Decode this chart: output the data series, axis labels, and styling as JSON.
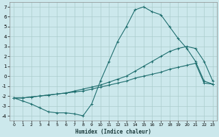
{
  "xlabel": "Humidex (Indice chaleur)",
  "bg_color": "#cce8ec",
  "grid_color": "#aacccc",
  "line_color": "#1a6b6b",
  "xlim": [
    -0.5,
    23.5
  ],
  "ylim": [
    -4.5,
    7.5
  ],
  "xticks": [
    0,
    1,
    2,
    3,
    4,
    5,
    6,
    7,
    8,
    9,
    10,
    11,
    12,
    13,
    14,
    15,
    16,
    17,
    18,
    19,
    20,
    21,
    22,
    23
  ],
  "yticks": [
    -4,
    -3,
    -2,
    -1,
    0,
    1,
    2,
    3,
    4,
    5,
    6,
    7
  ],
  "series": [
    {
      "x": [
        0,
        1,
        2,
        3,
        4,
        5,
        6,
        7,
        8,
        9,
        10,
        11,
        12,
        13,
        14,
        15,
        16,
        17,
        18,
        19,
        20,
        21,
        22,
        23
      ],
      "y": [
        -2.2,
        -2.5,
        -2.8,
        -3.2,
        -3.6,
        -3.7,
        -3.7,
        -3.8,
        -4.0,
        -2.8,
        -0.5,
        1.5,
        3.5,
        5.0,
        6.7,
        7.0,
        6.5,
        6.2,
        5.0,
        3.8,
        2.8,
        1.5,
        -0.5,
        -0.8
      ]
    },
    {
      "x": [
        0,
        1,
        2,
        3,
        4,
        5,
        6,
        7,
        8,
        9,
        10,
        11,
        12,
        13,
        14,
        15,
        16,
        17,
        18,
        19,
        20,
        21,
        22,
        23
      ],
      "y": [
        -2.2,
        -2.2,
        -2.1,
        -2.0,
        -1.9,
        -1.8,
        -1.7,
        -1.5,
        -1.3,
        -1.1,
        -0.9,
        -0.6,
        -0.3,
        0.0,
        0.5,
        1.0,
        1.5,
        2.0,
        2.5,
        2.8,
        3.0,
        2.8,
        1.5,
        -0.5
      ]
    },
    {
      "x": [
        0,
        1,
        2,
        3,
        4,
        5,
        6,
        7,
        8,
        9,
        10,
        11,
        12,
        13,
        14,
        15,
        16,
        17,
        18,
        19,
        20,
        21,
        22,
        23
      ],
      "y": [
        -2.2,
        -2.2,
        -2.1,
        -2.0,
        -1.9,
        -1.8,
        -1.7,
        -1.6,
        -1.5,
        -1.3,
        -1.1,
        -0.9,
        -0.7,
        -0.5,
        -0.2,
        0.0,
        0.2,
        0.4,
        0.7,
        0.9,
        1.1,
        1.3,
        -0.7,
        -0.8
      ]
    }
  ]
}
